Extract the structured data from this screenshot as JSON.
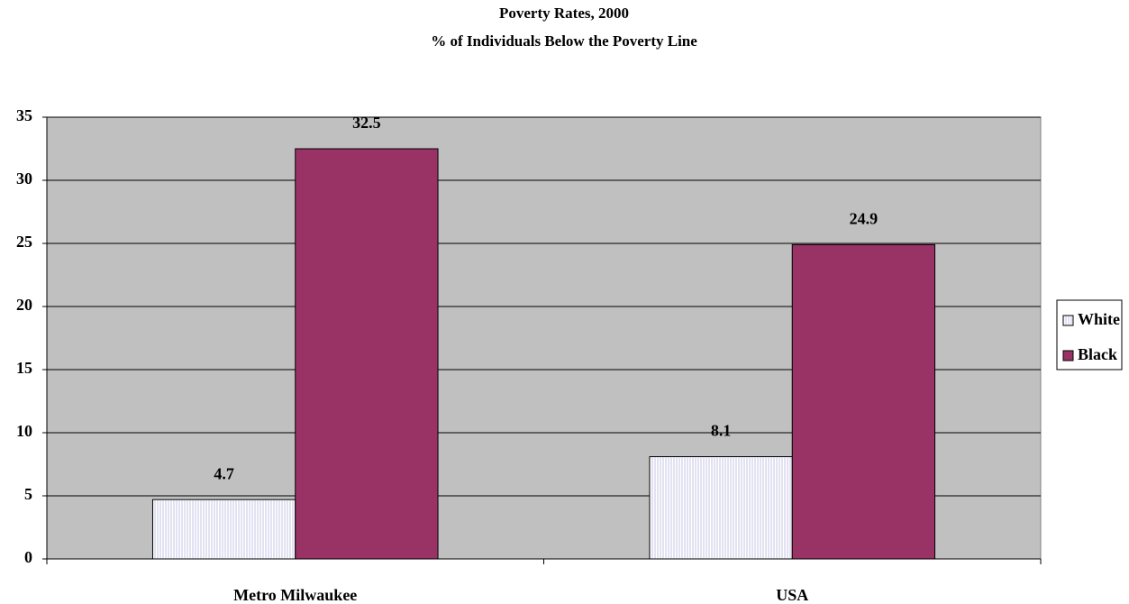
{
  "chart_data": {
    "type": "bar",
    "title": "Poverty Rates, 2000",
    "subtitle": "% of Individuals Below the Poverty Line",
    "categories": [
      "Metro Milwaukee",
      "USA"
    ],
    "series": [
      {
        "name": "White",
        "color": "#ffffff",
        "pattern": "vertical-lines",
        "values": [
          4.7,
          8.1
        ]
      },
      {
        "name": "Black",
        "color": "#993366",
        "values": [
          32.5,
          24.9
        ]
      }
    ],
    "ylim": [
      0,
      35
    ],
    "yticks": [
      0,
      5,
      10,
      15,
      20,
      25,
      30,
      35
    ],
    "grid": true,
    "plot_background": "#c0c0c0",
    "legend": "right"
  }
}
